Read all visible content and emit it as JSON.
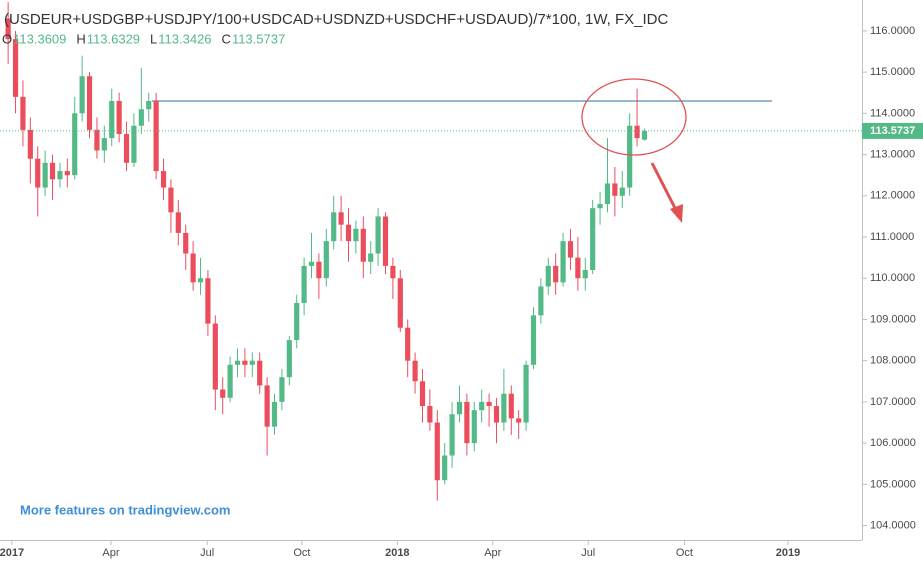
{
  "chart_data": {
    "type": "candlestick",
    "title": "(USDEUR+USDGBP+USDJPY/100+USDCAD+USDNZD+USDCHF+USDAUD)/7*100, 1W, FX_IDC",
    "ohlc_labels": [
      "O",
      "H",
      "L",
      "C"
    ],
    "watermark": "More features on tradingview.com",
    "up_color": "#53b987",
    "down_color": "#eb4d5c",
    "open": [
      116.3,
      115.8,
      114.4,
      113.6,
      112.9,
      112.2,
      112.8,
      112.4,
      112.6,
      112.5,
      114.0,
      114.9,
      113.6,
      113.1,
      113.4,
      114.3,
      113.5,
      112.8,
      113.7,
      114.1,
      114.3,
      112.6,
      112.2,
      111.6,
      111.1,
      110.6,
      109.9,
      110.0,
      108.9,
      107.3,
      107.1,
      107.9,
      108.0,
      107.9,
      108.0,
      107.4,
      106.4,
      107.0,
      107.6,
      108.5,
      109.4,
      110.3,
      110.4,
      110.0,
      110.9,
      111.6,
      111.3,
      110.9,
      111.2,
      110.4,
      110.6,
      111.5,
      110.3,
      110.0,
      108.8,
      108.0,
      107.5,
      106.9,
      106.5,
      105.1,
      105.7,
      106.7,
      107.0,
      106.0,
      106.8,
      107.0,
      106.9,
      106.5,
      107.2,
      106.6,
      106.5,
      107.9,
      109.1,
      109.8,
      110.3,
      109.9,
      110.9,
      110.5,
      110.0,
      110.2,
      111.7,
      111.8,
      112.3,
      112.0,
      112.2,
      113.7,
      113.3609
    ],
    "high": [
      116.7,
      116.0,
      114.8,
      113.9,
      113.2,
      113.1,
      113.0,
      112.8,
      112.9,
      114.4,
      115.4,
      115.0,
      113.9,
      113.7,
      114.6,
      114.5,
      113.8,
      114.0,
      115.1,
      114.5,
      114.5,
      112.9,
      112.4,
      111.9,
      111.3,
      110.9,
      110.5,
      110.2,
      109.1,
      107.6,
      108.1,
      108.3,
      108.3,
      108.2,
      108.2,
      107.6,
      107.2,
      107.8,
      108.6,
      109.6,
      110.5,
      111.1,
      110.6,
      111.2,
      112.0,
      112.0,
      111.7,
      111.4,
      111.5,
      110.9,
      111.7,
      111.6,
      110.5,
      110.2,
      109.0,
      108.2,
      107.8,
      107.3,
      106.8,
      106.0,
      107.0,
      107.4,
      107.2,
      107.0,
      107.3,
      107.2,
      107.1,
      107.8,
      107.4,
      106.8,
      108.0,
      109.3,
      110.0,
      110.5,
      110.6,
      111.1,
      111.2,
      111.0,
      110.5,
      111.9,
      112.1,
      113.4,
      112.7,
      112.6,
      114.0,
      114.6,
      113.6329
    ],
    "low": [
      115.2,
      114.0,
      113.2,
      112.3,
      111.5,
      112.0,
      111.9,
      112.2,
      112.2,
      112.4,
      113.8,
      113.4,
      112.9,
      112.8,
      113.2,
      113.3,
      112.6,
      112.7,
      113.5,
      113.8,
      112.4,
      111.9,
      111.1,
      110.8,
      110.2,
      109.7,
      109.6,
      108.6,
      106.8,
      106.7,
      107.0,
      107.6,
      107.6,
      107.6,
      107.2,
      105.7,
      106.2,
      106.8,
      107.4,
      108.3,
      109.1,
      110.0,
      109.5,
      109.8,
      110.7,
      110.9,
      110.4,
      110.6,
      110.0,
      110.1,
      110.3,
      110.1,
      109.5,
      108.7,
      107.6,
      107.2,
      106.5,
      106.3,
      104.6,
      105.0,
      105.4,
      106.5,
      105.7,
      105.8,
      106.5,
      106.4,
      106.0,
      106.3,
      106.2,
      106.1,
      106.3,
      107.8,
      108.9,
      109.6,
      109.6,
      109.8,
      110.2,
      109.7,
      109.7,
      110.1,
      111.3,
      111.6,
      111.5,
      111.7,
      112.0,
      113.2,
      113.3426
    ],
    "close": [
      115.8,
      114.4,
      113.6,
      112.9,
      112.2,
      112.8,
      112.4,
      112.6,
      112.5,
      114.0,
      114.9,
      113.6,
      113.1,
      113.4,
      114.3,
      113.5,
      112.8,
      113.7,
      114.1,
      114.3,
      112.6,
      112.2,
      111.6,
      111.1,
      110.6,
      109.9,
      110.0,
      108.9,
      107.3,
      107.1,
      107.9,
      108.0,
      107.9,
      108.0,
      107.4,
      106.4,
      107.0,
      107.6,
      108.5,
      109.4,
      110.3,
      110.4,
      110.0,
      110.9,
      111.6,
      111.3,
      110.9,
      111.2,
      110.4,
      110.6,
      111.5,
      110.3,
      110.0,
      108.8,
      108.0,
      107.5,
      106.9,
      106.5,
      105.1,
      105.7,
      106.7,
      107.0,
      106.0,
      106.8,
      107.0,
      106.9,
      106.5,
      107.2,
      106.6,
      106.5,
      107.9,
      109.1,
      109.8,
      110.3,
      109.9,
      110.9,
      110.5,
      110.0,
      110.2,
      111.7,
      111.8,
      112.3,
      112.0,
      112.2,
      113.7,
      113.4,
      113.5737
    ],
    "resistance_line": 114.3,
    "xlim": [
      -1.1,
      115.4
    ],
    "xticks": [
      {
        "value": 0.5,
        "label": "2017"
      },
      {
        "value": 13.9,
        "label": "Apr"
      },
      {
        "value": 26.9,
        "label": "Jul"
      },
      {
        "value": 39.7,
        "label": "Oct"
      },
      {
        "value": 52.6,
        "label": "2018"
      },
      {
        "value": 65.5,
        "label": "Apr"
      },
      {
        "value": 78.4,
        "label": "Jul"
      },
      {
        "value": 91.4,
        "label": "Oct"
      },
      {
        "value": 105.4,
        "label": "2019"
      }
    ],
    "ylim": [
      103.65,
      116.75
    ],
    "yticks": [
      {
        "value": 104,
        "label": "104.0000"
      },
      {
        "value": 105,
        "label": "105.0000"
      },
      {
        "value": 106,
        "label": "106.0000"
      },
      {
        "value": 107,
        "label": "107.0000"
      },
      {
        "value": 108,
        "label": "108.0000"
      },
      {
        "value": 109,
        "label": "109.0000"
      },
      {
        "value": 110,
        "label": "110.0000"
      },
      {
        "value": 111,
        "label": "111.0000"
      },
      {
        "value": 112,
        "label": "112.0000"
      },
      {
        "value": 113,
        "label": "113.0000"
      },
      {
        "value": 114,
        "label": "114.0000"
      },
      {
        "value": 115,
        "label": "115.0000"
      },
      {
        "value": 116,
        "label": "116.0000"
      }
    ]
  }
}
